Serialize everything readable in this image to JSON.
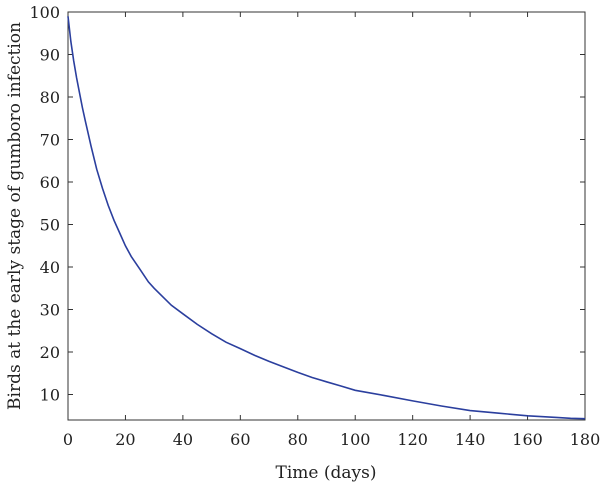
{
  "chart_data": {
    "type": "line",
    "title": "",
    "xlabel": "Time (days)",
    "ylabel": "Birds at the early stage of gumboro infection",
    "xlim": [
      0,
      180
    ],
    "ylim": [
      4,
      100
    ],
    "xticks": [
      0,
      20,
      40,
      60,
      80,
      100,
      120,
      140,
      160,
      180
    ],
    "yticks": [
      10,
      20,
      30,
      40,
      50,
      60,
      70,
      80,
      90,
      100
    ],
    "grid": false,
    "legend": "none",
    "series": [
      {
        "color": "#2b3f9e",
        "x": [
          0,
          1,
          2,
          3,
          4,
          5,
          6,
          8,
          10,
          12,
          14,
          16,
          18,
          20,
          22,
          25,
          28,
          30,
          33,
          36,
          40,
          45,
          50,
          55,
          60,
          65,
          70,
          75,
          80,
          85,
          90,
          95,
          100,
          110,
          120,
          130,
          140,
          150,
          160,
          170,
          175,
          180
        ],
        "y": [
          99,
          93,
          88.5,
          84.5,
          81,
          77.5,
          74.5,
          68.5,
          63,
          58.5,
          54.5,
          51,
          48,
          45,
          42.5,
          39.5,
          36.5,
          35,
          33,
          31,
          29,
          26.5,
          24.3,
          22.3,
          20.8,
          19.2,
          17.8,
          16.5,
          15.2,
          14,
          13,
          12,
          11,
          9.8,
          8.5,
          7.3,
          6.2,
          5.6,
          5.0,
          4.6,
          4.4,
          4.3
        ]
      }
    ]
  }
}
